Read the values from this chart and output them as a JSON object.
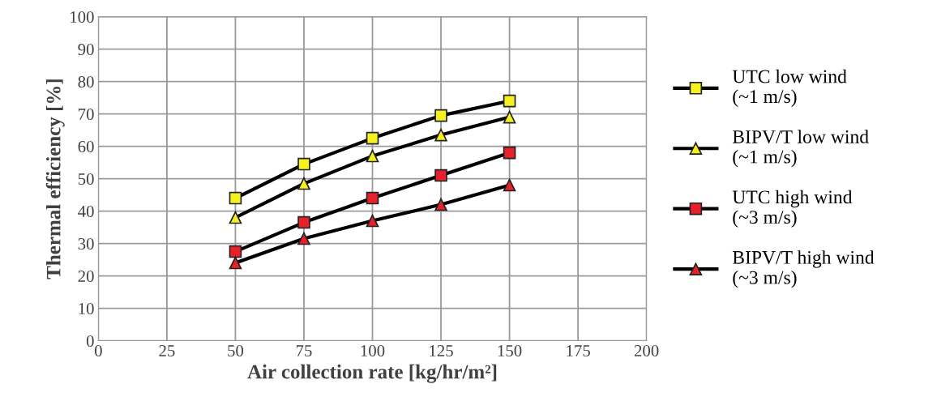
{
  "chart_data": {
    "type": "line",
    "xlabel": "Air collection rate [kg/hr/m²]",
    "ylabel": "Thermal efficiency [%]",
    "x": [
      50,
      75,
      100,
      125,
      150
    ],
    "series": [
      {
        "name": "UTC low wind\n(~1 m/s)",
        "color": "#f5f01e",
        "marker": "square",
        "values": [
          44,
          54.5,
          62.5,
          69.5,
          74
        ]
      },
      {
        "name": "BIPV/T low wind\n(~1 m/s)",
        "color": "#f5f01e",
        "marker": "triangle",
        "values": [
          38,
          48.5,
          57,
          63.5,
          69
        ]
      },
      {
        "name": "UTC high wind\n(~3 m/s)",
        "color": "#e8202a",
        "marker": "square",
        "values": [
          27.5,
          36.5,
          44,
          51,
          58
        ]
      },
      {
        "name": "BIPV/T high wind\n(~3 m/s)",
        "color": "#e8202a",
        "marker": "triangle",
        "values": [
          24,
          31.5,
          37,
          42,
          48
        ]
      }
    ],
    "xlim": [
      0,
      200
    ],
    "xticks": [
      0,
      25,
      50,
      75,
      100,
      125,
      150,
      175,
      200
    ],
    "ylim": [
      0,
      100
    ],
    "yticks": [
      0,
      10,
      20,
      30,
      40,
      50,
      60,
      70,
      80,
      90,
      100
    ],
    "grid": true,
    "legend": "right",
    "line_style": "solid"
  }
}
